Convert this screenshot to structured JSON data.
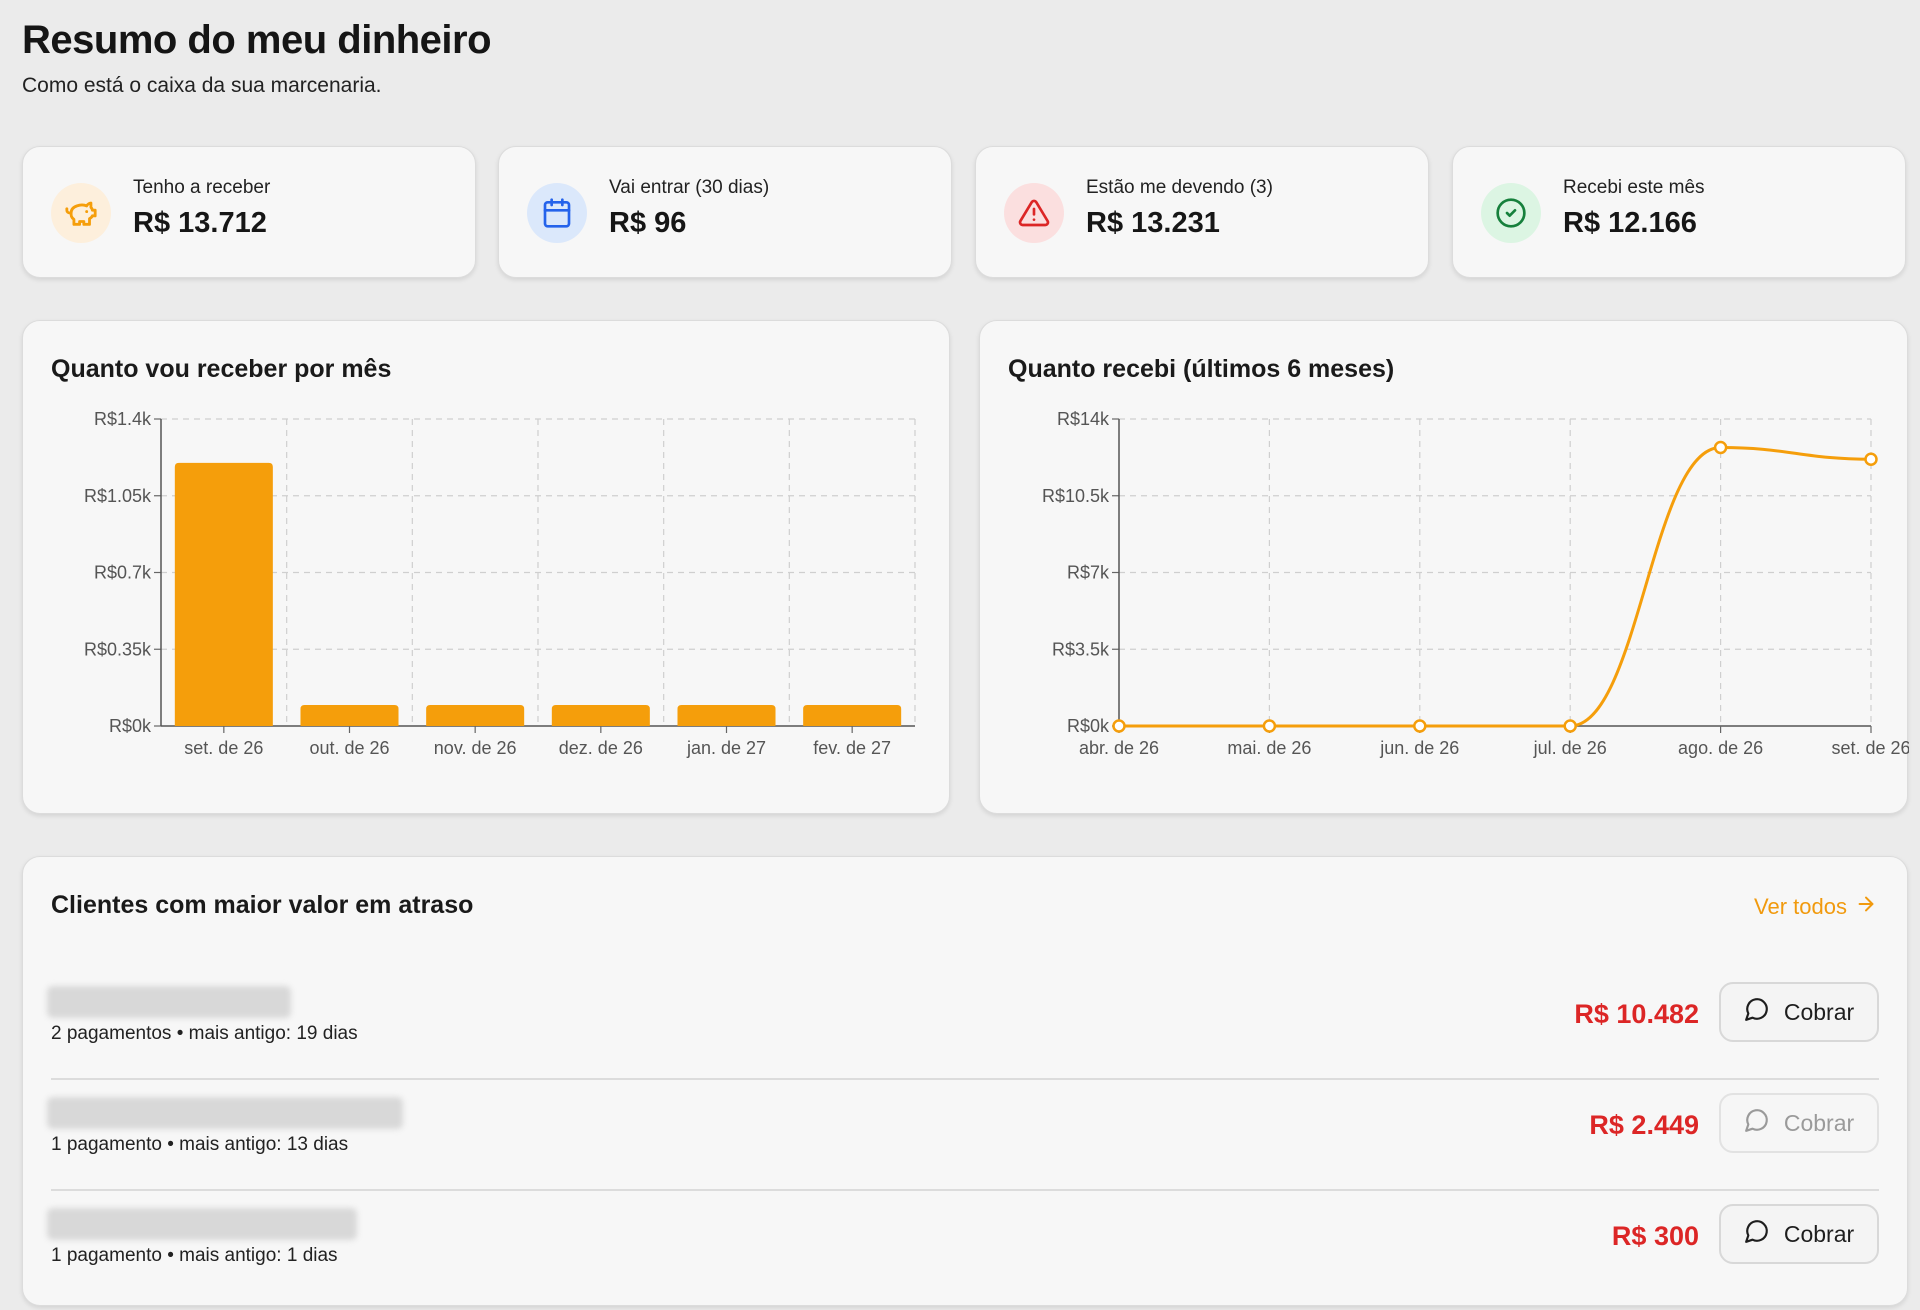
{
  "header": {
    "title": "Resumo do meu dinheiro",
    "subtitle": "Como está o caixa da sua marcenaria."
  },
  "kpis": [
    {
      "label": "Tenho a receber",
      "value": "R$ 13.712",
      "icon": "piggy-bank-icon",
      "color": "#f59e0b",
      "bg": "#fdefdc"
    },
    {
      "label": "Vai entrar (30 dias)",
      "value": "R$ 96",
      "icon": "calendar-icon",
      "color": "#2563eb",
      "bg": "#dbe8fb"
    },
    {
      "label": "Estão me devendo (3)",
      "value": "R$ 13.231",
      "icon": "alert-triangle-icon",
      "color": "#dc2626",
      "bg": "#fbdfdf"
    },
    {
      "label": "Recebi este mês",
      "value": "R$ 12.166",
      "icon": "check-circle-icon",
      "color": "#16a34a",
      "bg": "#dcf5e3"
    }
  ],
  "chart_data": [
    {
      "type": "bar",
      "title": "Quanto vou receber por mês",
      "categories": [
        "set. de 26",
        "out. de 26",
        "nov. de 26",
        "dez. de 26",
        "jan. de 27",
        "fev. de 27"
      ],
      "values": [
        1200,
        96,
        96,
        96,
        96,
        96
      ],
      "ylim": [
        0,
        1400
      ],
      "yticks": [
        0,
        350,
        700,
        1050,
        1400
      ],
      "ytick_labels": [
        "R$0k",
        "R$0.35k",
        "R$0.7k",
        "R$1.05k",
        "R$1.4k"
      ],
      "grid": true,
      "color": "#f59e0b"
    },
    {
      "type": "line",
      "title": "Quanto recebi (últimos 6 meses)",
      "categories": [
        "abr. de 26",
        "mai. de 26",
        "jun. de 26",
        "jul. de 26",
        "ago. de 26",
        "set. de 26"
      ],
      "values": [
        0,
        0,
        0,
        0,
        12700,
        12166
      ],
      "ylim": [
        0,
        14000
      ],
      "yticks": [
        0,
        3500,
        7000,
        10500,
        14000
      ],
      "ytick_labels": [
        "R$0k",
        "R$3.5k",
        "R$7k",
        "R$10.5k",
        "R$14k"
      ],
      "grid": true,
      "color": "#f59e0b"
    }
  ],
  "overdue": {
    "title": "Clientes com maior valor em atraso",
    "see_all": "Ver todos",
    "charge_label": "Cobrar",
    "clients": [
      {
        "meta": "2 pagamentos • mais antigo: 19 dias",
        "amount": "R$ 10.482",
        "enabled": true
      },
      {
        "meta": "1 pagamento • mais antigo: 13 dias",
        "amount": "R$ 2.449",
        "enabled": false
      },
      {
        "meta": "1 pagamento • mais antigo: 1 dias",
        "amount": "R$ 300",
        "enabled": true
      }
    ]
  }
}
